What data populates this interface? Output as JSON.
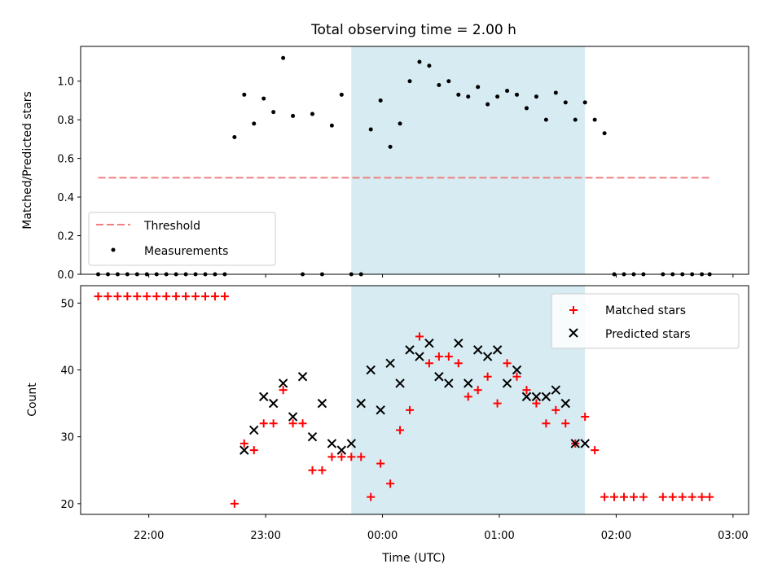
{
  "chart_data": {
    "title": "Total observing time = 2.00 h",
    "xlabel": "Time (UTC)",
    "x_ticks": [
      "22:00",
      "23:00",
      "00:00",
      "01:00",
      "02:00",
      "03:00"
    ],
    "x_range": [
      "21:25",
      "03:08"
    ],
    "highlight_span": {
      "start": "23:44",
      "end": "01:44",
      "color": "#add8e6"
    },
    "panels": [
      {
        "type": "scatter",
        "ylabel": "Matched/Predicted stars",
        "ylim": [
          0,
          1.18
        ],
        "y_ticks": [
          "0.0",
          "0.2",
          "0.4",
          "0.6",
          "0.8",
          "1.0"
        ],
        "legend_position": "lower-left",
        "threshold": {
          "name": "Threshold",
          "value": 0.5,
          "x_start": "21:34",
          "x_end": "02:48",
          "color": "#f08080",
          "style": "dashed"
        },
        "series": [
          {
            "name": "Measurements",
            "color": "#000000",
            "marker": "dot",
            "x": [
              "21:34",
              "21:39",
              "21:44",
              "21:49",
              "21:54",
              "21:59",
              "22:04",
              "22:09",
              "22:14",
              "22:19",
              "22:24",
              "22:29",
              "22:34",
              "22:39",
              "22:44",
              "22:49",
              "22:54",
              "22:59",
              "23:04",
              "23:09",
              "23:14",
              "23:19",
              "23:24",
              "23:29",
              "23:34",
              "23:39",
              "23:44",
              "23:49",
              "23:54",
              "23:59",
              "00:04",
              "00:09",
              "00:14",
              "00:19",
              "00:24",
              "00:29",
              "00:34",
              "00:39",
              "00:44",
              "00:49",
              "00:54",
              "00:59",
              "01:04",
              "01:09",
              "01:14",
              "01:19",
              "01:24",
              "01:29",
              "01:34",
              "01:39",
              "01:44",
              "01:49",
              "01:54",
              "01:59",
              "02:04",
              "02:09",
              "02:14",
              "02:24",
              "02:29",
              "02:34",
              "02:39",
              "02:44",
              "02:48"
            ],
            "y": [
              0,
              0,
              0,
              0,
              0,
              0,
              0,
              0,
              0,
              0,
              0,
              0,
              0,
              0,
              0.71,
              0.93,
              0.78,
              0.91,
              0.84,
              1.12,
              0.82,
              0,
              0.83,
              0,
              0.77,
              0.93,
              0,
              0,
              0.75,
              0.9,
              0.66,
              0.78,
              1.0,
              1.1,
              1.08,
              0.98,
              1.0,
              0.93,
              0.92,
              0.97,
              0.88,
              0.92,
              0.95,
              0.93,
              0.86,
              0.92,
              0.8,
              0.94,
              0.89,
              0.8,
              0.89,
              0.8,
              0.73,
              0,
              0,
              0,
              0,
              0,
              0,
              0,
              0,
              0,
              0
            ]
          }
        ]
      },
      {
        "type": "scatter",
        "ylabel": "Count",
        "ylim": [
          18.4,
          52.6
        ],
        "y_ticks": [
          "20",
          "30",
          "40",
          "50"
        ],
        "legend_position": "upper-right",
        "series": [
          {
            "name": "Matched stars",
            "color": "#ff0000",
            "marker": "plus",
            "x": [
              "21:34",
              "21:39",
              "21:44",
              "21:49",
              "21:54",
              "21:59",
              "22:04",
              "22:09",
              "22:14",
              "22:19",
              "22:24",
              "22:29",
              "22:34",
              "22:39",
              "22:44",
              "22:49",
              "22:54",
              "22:59",
              "23:04",
              "23:09",
              "23:14",
              "23:19",
              "23:24",
              "23:29",
              "23:34",
              "23:39",
              "23:44",
              "23:49",
              "23:54",
              "23:59",
              "00:04",
              "00:09",
              "00:14",
              "00:19",
              "00:24",
              "00:29",
              "00:34",
              "00:39",
              "00:44",
              "00:49",
              "00:54",
              "00:59",
              "01:04",
              "01:09",
              "01:14",
              "01:19",
              "01:24",
              "01:29",
              "01:34",
              "01:39",
              "01:44",
              "01:49",
              "01:54",
              "01:59",
              "02:04",
              "02:09",
              "02:14",
              "02:24",
              "02:29",
              "02:34",
              "02:39",
              "02:44",
              "02:48"
            ],
            "y": [
              51,
              51,
              51,
              51,
              51,
              51,
              51,
              51,
              51,
              51,
              51,
              51,
              51,
              51,
              20,
              29,
              28,
              32,
              32,
              37,
              32,
              32,
              25,
              25,
              27,
              27,
              27,
              27,
              21,
              26,
              23,
              31,
              34,
              45,
              41,
              42,
              42,
              41,
              36,
              37,
              39,
              35,
              41,
              39,
              37,
              35,
              32,
              34,
              32,
              29,
              33,
              28,
              21,
              21,
              21,
              21,
              21,
              21,
              21,
              21,
              21,
              21,
              21
            ]
          },
          {
            "name": "Predicted stars",
            "color": "#000000",
            "marker": "x",
            "x": [
              "22:49",
              "22:54",
              "22:59",
              "23:04",
              "23:09",
              "23:14",
              "23:19",
              "23:24",
              "23:29",
              "23:34",
              "23:39",
              "23:44",
              "23:49",
              "23:54",
              "23:59",
              "00:04",
              "00:09",
              "00:14",
              "00:19",
              "00:24",
              "00:29",
              "00:34",
              "00:39",
              "00:44",
              "00:49",
              "00:54",
              "00:59",
              "01:04",
              "01:09",
              "01:14",
              "01:19",
              "01:24",
              "01:29",
              "01:34",
              "01:39",
              "01:44"
            ],
            "y": [
              28,
              31,
              36,
              35,
              38,
              33,
              39,
              30,
              35,
              29,
              28,
              29,
              35,
              40,
              34,
              41,
              38,
              43,
              42,
              44,
              39,
              38,
              44,
              38,
              43,
              42,
              43,
              38,
              40,
              36,
              36,
              36,
              37,
              35,
              29,
              29
            ]
          }
        ]
      }
    ]
  }
}
